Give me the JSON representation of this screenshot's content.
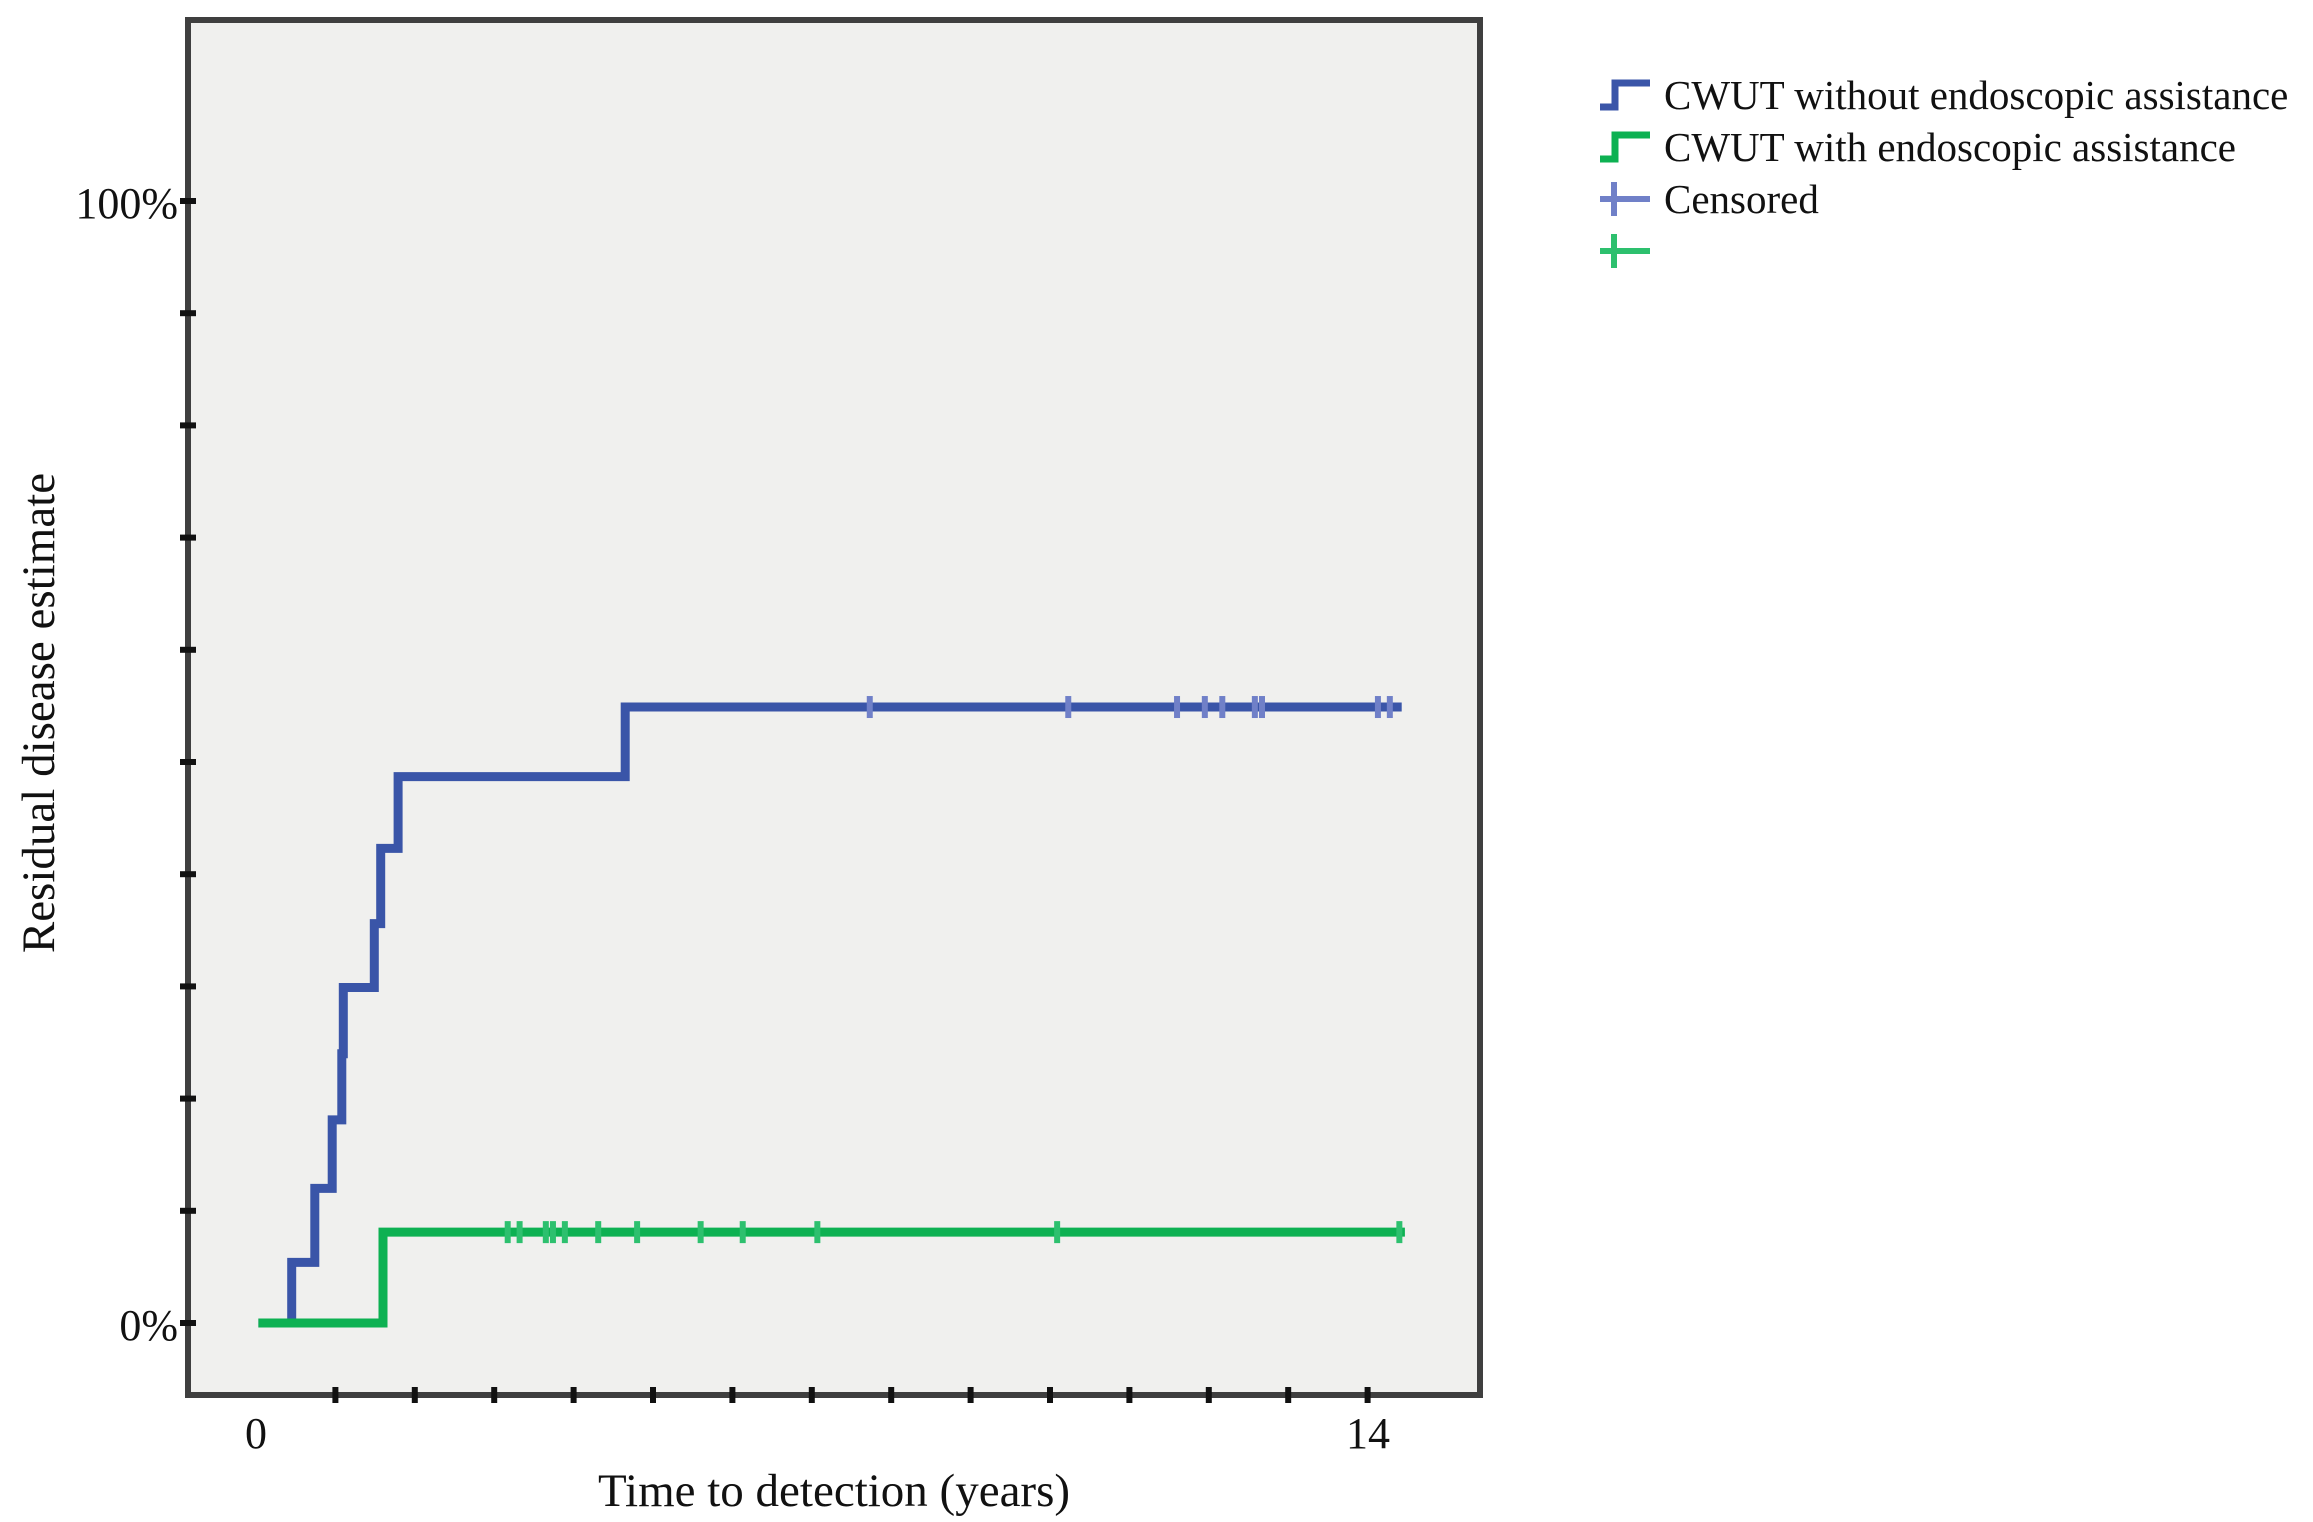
{
  "figure": {
    "plot_bg": "#f0f0ee",
    "frame_color": "#3f3f3f",
    "y_axis": {
      "title": "Residual disease estimate",
      "top_label": "100%",
      "bottom_label": "0%",
      "min": 0,
      "max": 100,
      "tick_step": 10
    },
    "x_axis": {
      "title": "Time to detection (years)",
      "left_label": "0",
      "right_label": "14",
      "min": 0,
      "max": 14,
      "tick_step": 1
    },
    "legend": {
      "items": [
        {
          "label": "CWUT without endoscopic assistance",
          "marker": "step-line",
          "color": "#3a55a8"
        },
        {
          "label": "CWUT with endoscopic assistance",
          "marker": "step-line",
          "color": "#0db152"
        },
        {
          "label": "Censored",
          "marker": "plus",
          "color": "#7080c8"
        },
        {
          "label": "",
          "marker": "plus",
          "color": "#2dc06e"
        }
      ]
    }
  },
  "chart_data": {
    "type": "line",
    "subtype": "kaplan-meier-cumulative-step",
    "title": "",
    "xlabel": "Time to detection (years)",
    "ylabel": "Residual disease estimate",
    "xlim": [
      0,
      14
    ],
    "ylim_pct": [
      0,
      100
    ],
    "grid": false,
    "legend_position": "top-right-outside",
    "series": [
      {
        "name": "CWUT without endoscopic assistance",
        "color": "#3a55a8",
        "censor_color": "#7080c8",
        "start": {
          "t": 0.03,
          "pct": 0
        },
        "steps": [
          {
            "t": 0.45,
            "pct": 5.4
          },
          {
            "t": 0.74,
            "pct": 12.0
          },
          {
            "t": 0.96,
            "pct": 18.1
          },
          {
            "t": 1.08,
            "pct": 24.0
          },
          {
            "t": 1.1,
            "pct": 29.9
          },
          {
            "t": 1.49,
            "pct": 35.6
          },
          {
            "t": 1.57,
            "pct": 42.3
          },
          {
            "t": 1.79,
            "pct": 48.7
          },
          {
            "t": 4.65,
            "pct": 54.9
          }
        ],
        "end_t": 14.43,
        "censored_t": [
          7.73,
          10.23,
          11.6,
          11.95,
          12.17,
          12.58,
          12.67,
          14.13,
          14.28
        ]
      },
      {
        "name": "CWUT with endoscopic assistance",
        "color": "#0db152",
        "censor_color": "#2dc06e",
        "start": {
          "t": 0.03,
          "pct": 0
        },
        "steps": [
          {
            "t": 1.6,
            "pct": 8.1
          }
        ],
        "end_t": 14.47,
        "censored_t": [
          3.17,
          3.32,
          3.65,
          3.74,
          3.89,
          4.31,
          4.8,
          5.6,
          6.13,
          7.07,
          10.09,
          14.4
        ]
      }
    ]
  }
}
